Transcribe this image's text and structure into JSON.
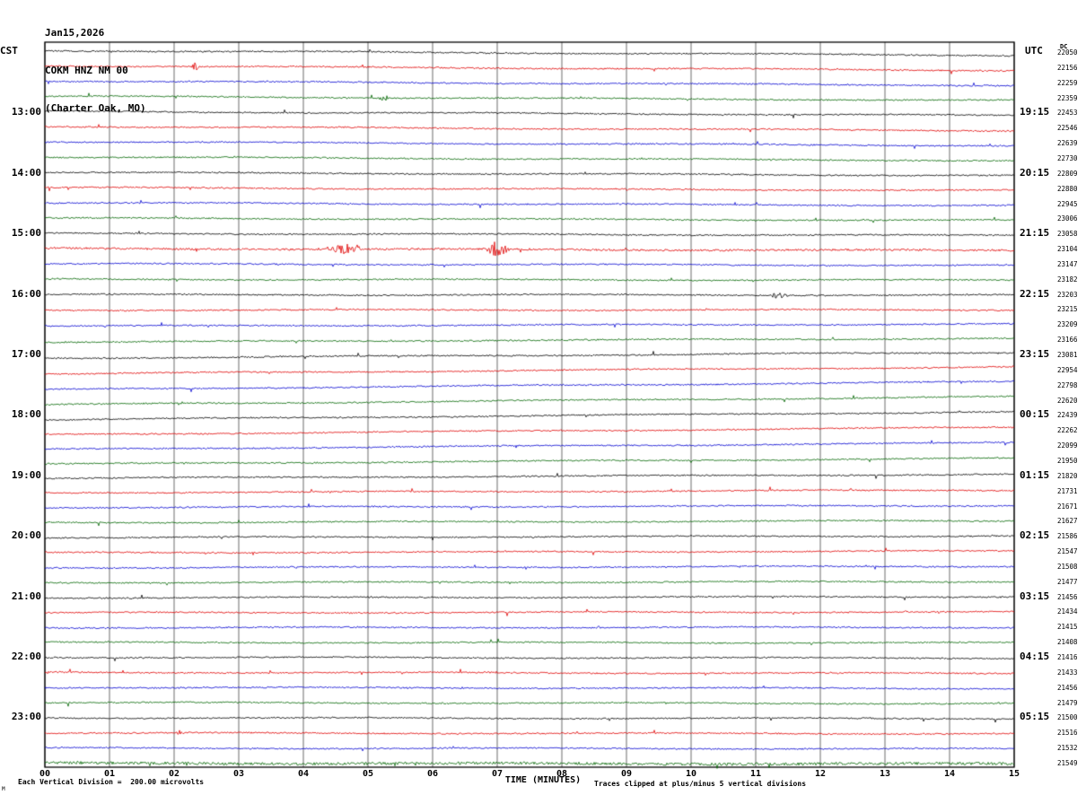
{
  "header": {
    "line1": "Jan15,2026",
    "line2": "COKM HNZ NM 00",
    "line3": "(Charter Oak, MO)"
  },
  "axis": {
    "left_tz": "CST",
    "right_tz": "UTC",
    "dc_label": "DC",
    "x_label": "TIME (MINUTES)"
  },
  "footer": {
    "scale_note": "Each Vertical Division =  200.00 microvolts",
    "clip_note": "Traces clipped at plus/minus 5 vertical divisions",
    "watermark": "M"
  },
  "chart_data": {
    "type": "line",
    "title": "COKM HNZ NM 00 (Charter Oak, MO) Jan15,2026 helicorder",
    "x_axis": {
      "label": "TIME (MINUTES)",
      "min": 0,
      "max": 15,
      "ticks": [
        "00",
        "01",
        "02",
        "03",
        "04",
        "05",
        "06",
        "07",
        "08",
        "09",
        "10",
        "11",
        "12",
        "13",
        "14",
        "15"
      ]
    },
    "y_axis": {
      "left_labels": [
        {
          "row": 4,
          "text": "13:00"
        },
        {
          "row": 8,
          "text": "14:00"
        },
        {
          "row": 12,
          "text": "15:00"
        },
        {
          "row": 16,
          "text": "16:00"
        },
        {
          "row": 20,
          "text": "17:00"
        },
        {
          "row": 24,
          "text": "18:00"
        },
        {
          "row": 28,
          "text": "19:00"
        },
        {
          "row": 32,
          "text": "20:00"
        },
        {
          "row": 36,
          "text": "21:00"
        },
        {
          "row": 40,
          "text": "22:00"
        },
        {
          "row": 44,
          "text": "23:00"
        }
      ],
      "right_labels": [
        {
          "row": 4,
          "text": "19:15"
        },
        {
          "row": 8,
          "text": "20:15"
        },
        {
          "row": 12,
          "text": "21:15"
        },
        {
          "row": 16,
          "text": "22:15"
        },
        {
          "row": 20,
          "text": "23:15"
        },
        {
          "row": 24,
          "text": "00:15"
        },
        {
          "row": 28,
          "text": "01:15"
        },
        {
          "row": 32,
          "text": "02:15"
        },
        {
          "row": 36,
          "text": "03:15"
        },
        {
          "row": 40,
          "text": "04:15"
        },
        {
          "row": 44,
          "text": "05:15"
        }
      ]
    },
    "vertical_division_microvolts": 200.0,
    "clip_divisions": 5,
    "minutes_per_row": 15,
    "colors_cycle": [
      "#000000",
      "#e00000",
      "#0000d0",
      "#006600"
    ],
    "dc_values": [
      22050,
      22156,
      22259,
      22359,
      22453,
      22546,
      22639,
      22730,
      22809,
      22880,
      22945,
      23006,
      23058,
      23104,
      23147,
      23182,
      23203,
      23215,
      23209,
      23166,
      23081,
      22954,
      22798,
      22620,
      22439,
      22262,
      22099,
      21950,
      21820,
      21731,
      21671,
      21627,
      21586,
      21547,
      21508,
      21477,
      21456,
      21434,
      21415,
      21408,
      21416,
      21433,
      21456,
      21479,
      21500,
      21516,
      21532,
      21549
    ],
    "noise_amp_default": 0.8,
    "noise_amp_overrides": {
      "13": 1.1,
      "47": 1.5
    },
    "events": [
      {
        "row": 1,
        "start_min": 2.25,
        "end_min": 2.4,
        "amp": 5
      },
      {
        "row": 3,
        "start_min": 5.15,
        "end_min": 5.35,
        "amp": 4
      },
      {
        "row": 13,
        "start_min": 4.3,
        "end_min": 5.0,
        "amp": 6
      },
      {
        "row": 13,
        "start_min": 6.8,
        "end_min": 7.2,
        "amp": 9
      },
      {
        "row": 16,
        "start_min": 11.15,
        "end_min": 11.55,
        "amp": 3
      },
      {
        "row": 45,
        "start_min": 2.0,
        "end_min": 2.15,
        "amp": 3
      }
    ]
  }
}
